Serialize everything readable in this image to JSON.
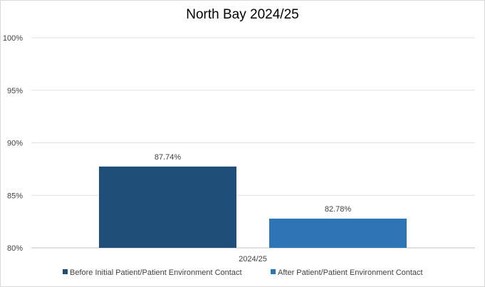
{
  "chart_data": {
    "type": "bar",
    "title": "North Bay 2024/25",
    "categories": [
      "2024/25"
    ],
    "series": [
      {
        "name": "Before Initial Patient/Patient Environment Contact",
        "values": [
          87.74
        ],
        "color": "#1f4e79",
        "label": "87.74%"
      },
      {
        "name": "After Patient/Patient Environment Contact",
        "values": [
          82.78
        ],
        "color": "#2e75b6",
        "label": "82.78%"
      }
    ],
    "ylim": [
      80,
      100
    ],
    "yticks": [
      "80%",
      "85%",
      "90%",
      "95%",
      "100%"
    ],
    "ytick_values": [
      80,
      85,
      90,
      95,
      100
    ],
    "grid": true,
    "legend_position": "bottom",
    "xlabel": "",
    "ylabel": ""
  }
}
